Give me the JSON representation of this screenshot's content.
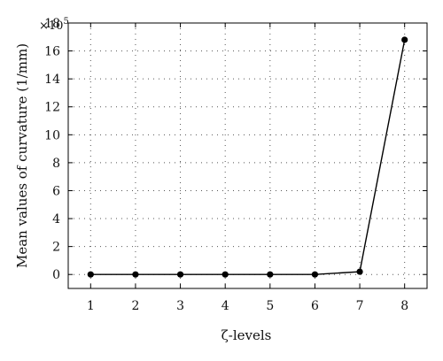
{
  "chart_data": {
    "type": "line",
    "x": [
      1,
      2,
      3,
      4,
      5,
      6,
      7,
      8
    ],
    "series": [
      {
        "values": [
          0,
          0,
          0,
          0,
          0,
          0,
          0.2,
          16.8
        ]
      }
    ],
    "xlabel": "ζ-levels",
    "ylabel": "Mean values of curvature (1/mm)",
    "y_multiplier": "×10",
    "y_multiplier_exponent": "5",
    "xlim": [
      0.5,
      8.5
    ],
    "ylim": [
      -1,
      18
    ],
    "xticks": [
      1,
      2,
      3,
      4,
      5,
      6,
      7,
      8
    ],
    "yticks": [
      0,
      2,
      4,
      6,
      8,
      10,
      12,
      14,
      16,
      18
    ],
    "grid": true,
    "line_color": "#000000"
  }
}
